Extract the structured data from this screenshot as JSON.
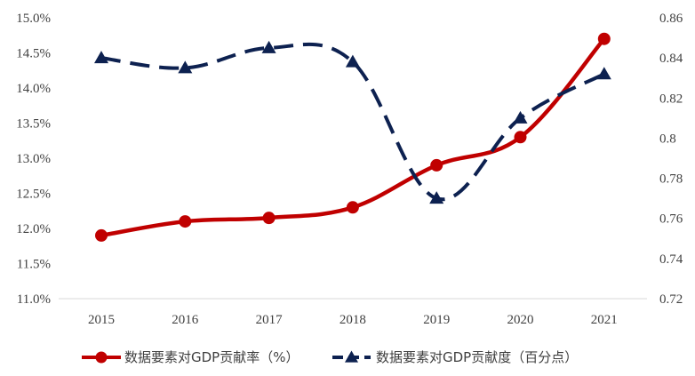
{
  "chart_data": {
    "type": "line",
    "x": [
      "2015",
      "2016",
      "2017",
      "2018",
      "2019",
      "2020",
      "2021"
    ],
    "series": [
      {
        "name": "数据要素对GDP贡献率（%）",
        "axis": "left",
        "values": [
          11.9,
          12.1,
          12.15,
          12.3,
          12.9,
          13.3,
          14.7
        ],
        "color": "#c00000",
        "line_style": "solid",
        "marker": "circle"
      },
      {
        "name": "数据要素对GDP贡献度（百分点）",
        "axis": "right",
        "values": [
          0.84,
          0.835,
          0.845,
          0.838,
          0.77,
          0.81,
          0.832
        ],
        "color": "#0d2150",
        "line_style": "dashed",
        "marker": "triangle"
      }
    ],
    "y_left": {
      "ylim": [
        11.0,
        15.0
      ],
      "ticks": [
        11.0,
        11.5,
        12.0,
        12.5,
        13.0,
        13.5,
        14.0,
        14.5,
        15.0
      ],
      "tick_labels": [
        "11.0%",
        "11.5%",
        "12.0%",
        "12.5%",
        "13.0%",
        "13.5%",
        "14.0%",
        "14.5%",
        "15.0%"
      ]
    },
    "y_right": {
      "ylim": [
        0.72,
        0.86
      ],
      "ticks": [
        0.72,
        0.74,
        0.76,
        0.78,
        0.8,
        0.82,
        0.84,
        0.86
      ],
      "tick_labels": [
        "0.72",
        "0.74",
        "0.76",
        "0.78",
        "0.8",
        "0.82",
        "0.84",
        "0.86"
      ]
    },
    "grid": false,
    "legend_position": "bottom"
  }
}
